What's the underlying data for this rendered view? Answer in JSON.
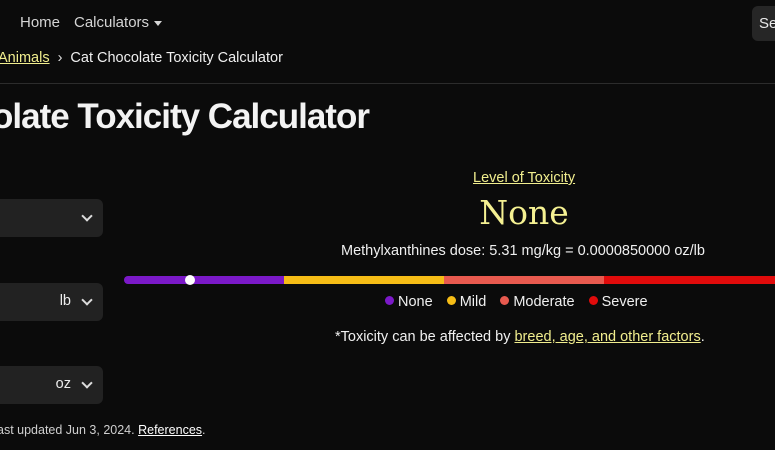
{
  "nav": {
    "home": "Home",
    "calculators": "Calculators",
    "search_partial": "Se"
  },
  "breadcrumb": {
    "parent": "Animals",
    "separator": "›",
    "current": "Cat Chocolate Toxicity Calculator"
  },
  "page": {
    "title_visible": "olate Toxicity Calculator"
  },
  "form": {
    "select1_value": "",
    "weight_unit": "lb",
    "amount_unit": "oz"
  },
  "result": {
    "heading": "Level of Toxicity",
    "level": "None",
    "dose_text": "Methylxanthines dose: 5.31 mg/kg = 0.0000850000 oz/lb",
    "marker_fraction": 0.1,
    "scale_colors": [
      "#7b19c8",
      "#f6bd16",
      "#e85a4f",
      "#e10b0b"
    ]
  },
  "legend": [
    {
      "label": "None",
      "color": "#7b19c8"
    },
    {
      "label": "Mild",
      "color": "#f6bd16"
    },
    {
      "label": "Moderate",
      "color": "#e85a4f"
    },
    {
      "label": "Severe",
      "color": "#e10b0b"
    }
  ],
  "note": {
    "prefix": "*Toxicity can be affected by ",
    "link": "breed, age, and other factors",
    "suffix": "."
  },
  "footer": {
    "updated": "ast updated Jun 3, 2024. ",
    "references": "References",
    "suffix": "."
  }
}
